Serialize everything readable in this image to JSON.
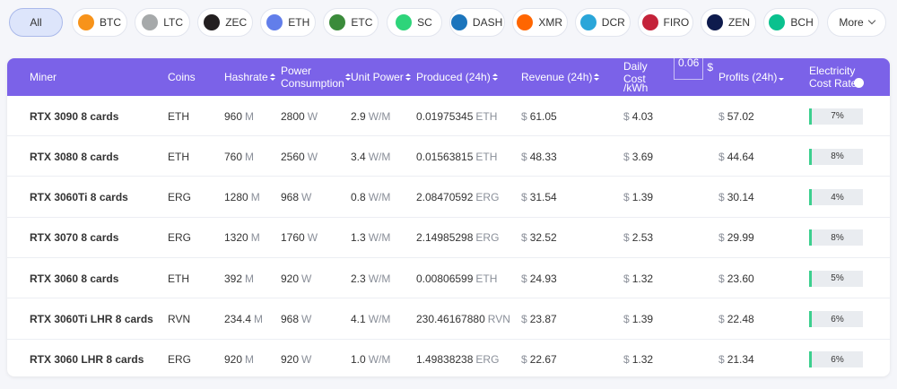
{
  "tabs": [
    "All",
    "BTC",
    "LTC",
    "ZEC",
    "ETH",
    "ETC",
    "SC",
    "DASH",
    "XMR",
    "DCR",
    "FIRO",
    "ZEN",
    "BCH",
    "More"
  ],
  "table": {
    "headers": [
      "Miner",
      "Coins",
      "Hashrate",
      "Power Consumption",
      "Unit Power",
      "Produced (24h)",
      "Revenue (24h)",
      "Daily Cost",
      "Profits (24h)",
      "Electricity Cost Rate"
    ],
    "cost_input": {
      "value": "0.06",
      "currency": "$",
      "per": "/kWh"
    },
    "rows": [
      {
        "miner": "RTX 3090 8 cards",
        "coin": "ETH",
        "hashrate": {
          "value": "960",
          "unit": "M"
        },
        "power": {
          "value": "2800",
          "unit": "W"
        },
        "unit_power": {
          "value": "2.9",
          "unit": "W/M"
        },
        "produced": {
          "value": "0.01975345",
          "unit": "ETH"
        },
        "revenue": {
          "currency": "$",
          "value": "61.05"
        },
        "daily_cost": {
          "currency": "$",
          "value": "4.03"
        },
        "profit": {
          "currency": "$",
          "value": "57.02"
        },
        "rate": "7%"
      },
      {
        "miner": "RTX 3080 8 cards",
        "coin": "ETH",
        "hashrate": {
          "value": "760",
          "unit": "M"
        },
        "power": {
          "value": "2560",
          "unit": "W"
        },
        "unit_power": {
          "value": "3.4",
          "unit": "W/M"
        },
        "produced": {
          "value": "0.01563815",
          "unit": "ETH"
        },
        "revenue": {
          "currency": "$",
          "value": "48.33"
        },
        "daily_cost": {
          "currency": "$",
          "value": "3.69"
        },
        "profit": {
          "currency": "$",
          "value": "44.64"
        },
        "rate": "8%"
      },
      {
        "miner": "RTX 3060Ti 8 cards",
        "coin": "ERG",
        "hashrate": {
          "value": "1280",
          "unit": "M"
        },
        "power": {
          "value": "968",
          "unit": "W"
        },
        "unit_power": {
          "value": "0.8",
          "unit": "W/M"
        },
        "produced": {
          "value": "2.08470592",
          "unit": "ERG"
        },
        "revenue": {
          "currency": "$",
          "value": "31.54"
        },
        "daily_cost": {
          "currency": "$",
          "value": "1.39"
        },
        "profit": {
          "currency": "$",
          "value": "30.14"
        },
        "rate": "4%"
      },
      {
        "miner": "RTX 3070 8 cards",
        "coin": "ERG",
        "hashrate": {
          "value": "1320",
          "unit": "M"
        },
        "power": {
          "value": "1760",
          "unit": "W"
        },
        "unit_power": {
          "value": "1.3",
          "unit": "W/M"
        },
        "produced": {
          "value": "2.14985298",
          "unit": "ERG"
        },
        "revenue": {
          "currency": "$",
          "value": "32.52"
        },
        "daily_cost": {
          "currency": "$",
          "value": "2.53"
        },
        "profit": {
          "currency": "$",
          "value": "29.99"
        },
        "rate": "8%"
      },
      {
        "miner": "RTX 3060 8 cards",
        "coin": "ETH",
        "hashrate": {
          "value": "392",
          "unit": "M"
        },
        "power": {
          "value": "920",
          "unit": "W"
        },
        "unit_power": {
          "value": "2.3",
          "unit": "W/M"
        },
        "produced": {
          "value": "0.00806599",
          "unit": "ETH"
        },
        "revenue": {
          "currency": "$",
          "value": "24.93"
        },
        "daily_cost": {
          "currency": "$",
          "value": "1.32"
        },
        "profit": {
          "currency": "$",
          "value": "23.60"
        },
        "rate": "5%"
      },
      {
        "miner": "RTX 3060Ti LHR 8 cards",
        "coin": "RVN",
        "hashrate": {
          "value": "234.4",
          "unit": "M"
        },
        "power": {
          "value": "968",
          "unit": "W"
        },
        "unit_power": {
          "value": "4.1",
          "unit": "W/M"
        },
        "produced": {
          "value": "230.46167880",
          "unit": "RVN"
        },
        "revenue": {
          "currency": "$",
          "value": "23.87"
        },
        "daily_cost": {
          "currency": "$",
          "value": "1.39"
        },
        "profit": {
          "currency": "$",
          "value": "22.48"
        },
        "rate": "6%"
      },
      {
        "miner": "RTX 3060 LHR 8 cards",
        "coin": "ERG",
        "hashrate": {
          "value": "920",
          "unit": "M"
        },
        "power": {
          "value": "920",
          "unit": "W"
        },
        "unit_power": {
          "value": "1.0",
          "unit": "W/M"
        },
        "produced": {
          "value": "1.49838238",
          "unit": "ERG"
        },
        "revenue": {
          "currency": "$",
          "value": "22.67"
        },
        "daily_cost": {
          "currency": "$",
          "value": "1.32"
        },
        "profit": {
          "currency": "$",
          "value": "21.34"
        },
        "rate": "6%"
      }
    ]
  }
}
